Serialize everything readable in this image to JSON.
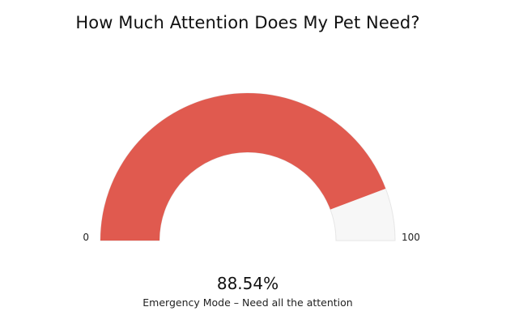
{
  "chart_data": {
    "type": "gauge",
    "title": "How Much Attention Does My Pet Need?",
    "min": 0,
    "max": 100,
    "value": 88.54,
    "value_label": "88.54%",
    "caption": "Emergency Mode – Need all the attention",
    "min_label": "0",
    "max_label": "100",
    "fill_color": "#e05a4f",
    "track_color": "#f7f7f7",
    "track_border_color": "#e6e6e6"
  }
}
